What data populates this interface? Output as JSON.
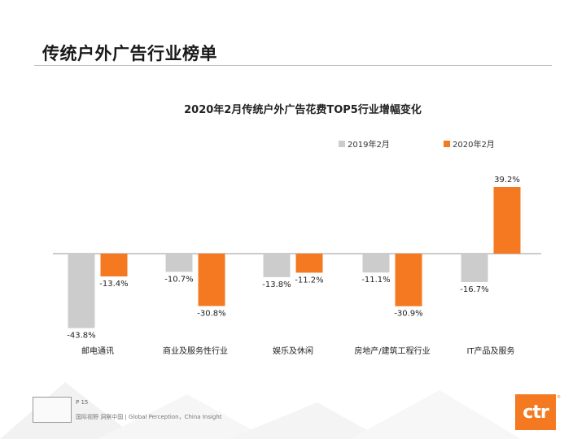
{
  "page": {
    "title": "传统户外广告行业榜单"
  },
  "footer": {
    "page_number": "P 15",
    "slogan": "国际视野  洞察中国 | Global Perception，China Insight",
    "logo_text": "ctr",
    "logo_mark": "®"
  },
  "colors": {
    "series_2019": "#cccccc",
    "series_2020": "#f47920",
    "text": "#222222",
    "axis": "#999999"
  },
  "chart_data": {
    "type": "bar",
    "title": "2020年2月传统户外广告花费TOP5行业增幅变化",
    "categories": [
      "邮电通讯",
      "商业及服务性行业",
      "娱乐及休闲",
      "房地产/建筑工程行业",
      "IT产品及服务"
    ],
    "series": [
      {
        "name": "2019年2月",
        "values": [
          -43.8,
          -10.7,
          -13.8,
          -11.1,
          -16.7
        ],
        "labels": [
          "-43.8%",
          "-10.7%",
          "-13.8%",
          "-11.1%",
          "-16.7%"
        ]
      },
      {
        "name": "2020年2月",
        "values": [
          -13.4,
          -30.8,
          -11.2,
          -30.9,
          39.2
        ],
        "labels": [
          "-13.4%",
          "-30.8%",
          "-11.2%",
          "-30.9%",
          "39.2%"
        ]
      }
    ],
    "ylim": [
      -45,
      40
    ],
    "xlabel": "",
    "ylabel": "",
    "legend": "top-right",
    "grid": false
  }
}
